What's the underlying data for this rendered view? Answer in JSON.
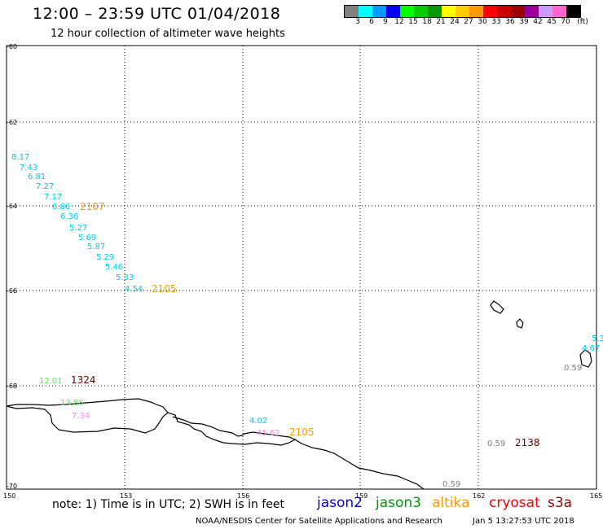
{
  "header": {
    "title": "12:00 – 23:59 UTC 01/04/2018",
    "subtitle": "12 hour collection of altimeter wave heights"
  },
  "legend": {
    "colors": [
      "#808080",
      "#00ffff",
      "#0099ff",
      "#0000ff",
      "#00ff00",
      "#00cc00",
      "#009900",
      "#ffff00",
      "#ffcc00",
      "#ff9900",
      "#ff0000",
      "#cc0000",
      "#990000",
      "#990099",
      "#cc99ff",
      "#ff66cc",
      "#000000"
    ],
    "labels": [
      "3",
      "6",
      "9",
      "12",
      "15",
      "18",
      "21",
      "24",
      "27",
      "30",
      "33",
      "36",
      "39",
      "42",
      "45",
      "70",
      "(ft)"
    ]
  },
  "map": {
    "x_ticks": [
      "150",
      "153",
      "156",
      "159",
      "162",
      "165"
    ],
    "y_ticks": [
      "-60",
      "-62",
      "-64",
      "-66",
      "-68",
      "-70"
    ],
    "colors": {
      "jason2": "#0000ee",
      "jason3": "#009900",
      "altika": "#ff9900",
      "cryosat": "#ff0000",
      "s3a": "#990000",
      "cyan": "#00ccee",
      "lightgreen": "#66dd66",
      "pink": "#ee88ee",
      "gray": "#808080",
      "darkred": "#660000"
    },
    "track_cyan": [
      "8.17",
      "7.43",
      "6.81",
      "7.27",
      "7.17",
      "6.86",
      "6.36",
      "5.27",
      "5.69",
      "5.87",
      "5.29",
      "5.46",
      "5.33",
      "4.54"
    ],
    "orange_labels": [
      "2107",
      "2105",
      "2105"
    ],
    "darkred_labels": [
      "1324",
      "2138"
    ],
    "green_labels": [
      "12.01",
      "13.86"
    ],
    "pink_labels": [
      "7.34",
      "45.62"
    ],
    "cyan_other": [
      "4.02",
      "5.3",
      "4.67"
    ],
    "gray_labels": [
      "0.59",
      "0.59",
      "0.59"
    ]
  },
  "note": "note: 1) Time is in UTC; 2) SWH is in feet",
  "satellites": [
    {
      "name": "jason2",
      "color": "#0000ee"
    },
    {
      "name": "jason3",
      "color": "#009900"
    },
    {
      "name": "altika",
      "color": "#ff9900"
    },
    {
      "name": "cryosat",
      "color": "#ff0000"
    },
    {
      "name": "s3a",
      "color": "#990000"
    }
  ],
  "footer": {
    "credit": "NOAA/NESDIS Center for Satellite Applications and Research",
    "timestamp": "Jan  5 13:27:53 UTC 2018"
  }
}
